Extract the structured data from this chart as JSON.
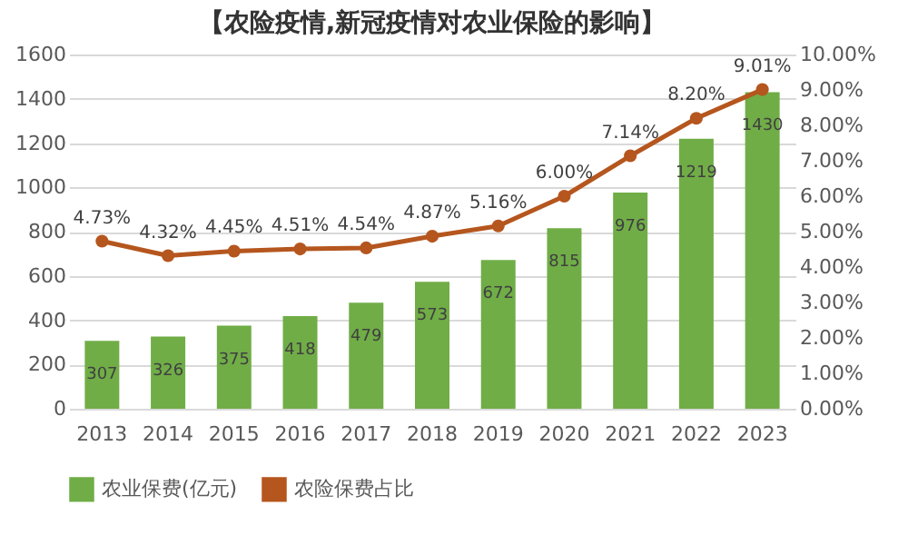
{
  "chart_data": {
    "type": "bar",
    "title": "【农险疫情,新冠疫情对农业保险的影响】",
    "categories": [
      "2013",
      "2014",
      "2015",
      "2016",
      "2017",
      "2018",
      "2019",
      "2020",
      "2021",
      "2022",
      "2023"
    ],
    "series": [
      {
        "name": "农业保费(亿元)",
        "color": "#70ad47",
        "values": [
          307,
          326,
          375,
          418,
          479,
          573,
          672,
          815,
          976,
          1219,
          1430
        ],
        "value_labels": [
          "307",
          "326",
          "375",
          "418",
          "479",
          "573",
          "672",
          "815",
          "976",
          "1219",
          "1430"
        ]
      },
      {
        "name": "农险保费占比",
        "type": "line",
        "axis": "y2",
        "color": "#b5561e",
        "values": [
          4.73,
          4.32,
          4.45,
          4.51,
          4.54,
          4.87,
          5.16,
          6.0,
          7.14,
          8.2,
          9.01
        ],
        "value_labels": [
          "4.73%",
          "4.32%",
          "4.45%",
          "4.51%",
          "4.54%",
          "4.87%",
          "5.16%",
          "6.00%",
          "7.14%",
          "8.20%",
          "9.01%"
        ]
      }
    ],
    "ylim": [
      0,
      1600
    ],
    "yticks": [
      0,
      200,
      400,
      600,
      800,
      1000,
      1200,
      1400,
      1600
    ],
    "y2lim": [
      0,
      10
    ],
    "y2ticks": [
      {
        "value": 0,
        "label": "0.00%"
      },
      {
        "value": 1,
        "label": "1.00%"
      },
      {
        "value": 2,
        "label": "2.00%"
      },
      {
        "value": 3,
        "label": "3.00%"
      },
      {
        "value": 4,
        "label": "4.00%"
      },
      {
        "value": 5,
        "label": "5.00%"
      },
      {
        "value": 6,
        "label": "6.00%"
      },
      {
        "value": 7,
        "label": "7.00%"
      },
      {
        "value": 8,
        "label": "8.00%"
      },
      {
        "value": 9,
        "label": "9.00%"
      },
      {
        "value": 10,
        "label": "10.00%"
      }
    ],
    "grid": "y",
    "legend": "bottom",
    "marker": "circle",
    "line_style": "solid"
  }
}
